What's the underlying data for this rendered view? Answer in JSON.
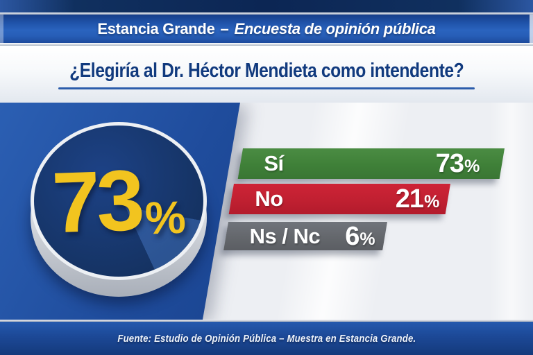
{
  "header": {
    "title_bold": "Estancia Grande",
    "separator": "–",
    "subtitle": "Encuesta de opinión pública"
  },
  "question": {
    "text": "¿Elegiría al Dr. Héctor Mendieta como intendente?"
  },
  "badge": {
    "value": "73",
    "suffix": "%"
  },
  "chart_data": {
    "type": "bar",
    "orientation": "horizontal",
    "title": "¿Elegiría al Dr. Héctor Mendieta como intendente?",
    "context": "Estancia Grande – Encuesta de opinión pública",
    "categories": [
      "Sí",
      "No",
      "Ns / Nc"
    ],
    "values": [
      73,
      21,
      6
    ],
    "value_labels": [
      "73%",
      "21%",
      "6%"
    ],
    "unit": "%",
    "bar_colors": [
      "#3f8038",
      "#c02031",
      "#64676c"
    ],
    "highlight_value": "73%",
    "legend": false,
    "grid": false,
    "source": "Fuente: Estudio de Opinión Pública – Muestra en Estancia Grande."
  },
  "bars": [
    {
      "label": "Sí",
      "value": "73",
      "suffix": "%",
      "color": "#3f8038"
    },
    {
      "label": "No",
      "value": "21",
      "suffix": "%",
      "color": "#c02031"
    },
    {
      "label": "Ns / Nc",
      "value": "6",
      "suffix": "%",
      "color": "#64676c"
    }
  ],
  "footer": {
    "text": "Fuente: Estudio de Opinión Pública – Muestra en Estancia Grande."
  },
  "colors": {
    "title_bar_blue": "#2a63be",
    "panel_blue": "#1f4c9c",
    "circle_navy": "#14315f",
    "accent_yellow": "#f2c41f",
    "question_text_blue": "#113a7e",
    "underline_blue": "#2b5cab",
    "green": "#3f8038",
    "red": "#c02031",
    "gray": "#64676c"
  }
}
